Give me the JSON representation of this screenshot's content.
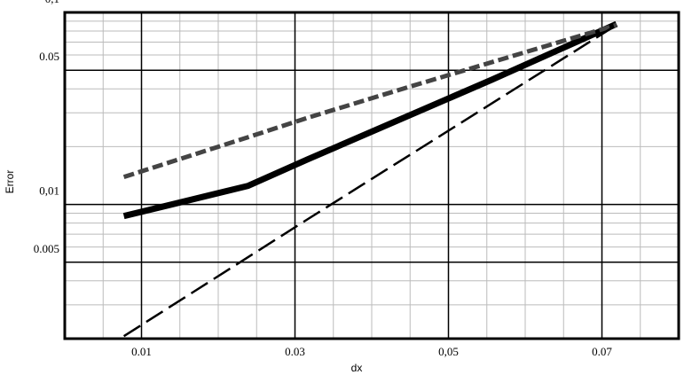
{
  "chart_data": {
    "type": "line",
    "x_label": "dx",
    "y_label": "Error",
    "xlim": [
      0,
      0.08
    ],
    "ylim": [
      0.002,
      0.1
    ],
    "y_scale": "log",
    "grid": true,
    "minor_grid": true,
    "xticks": [
      0.01,
      0.03,
      {
        "value": 0.05,
        "label": "0,05"
      },
      0.07
    ],
    "yticks": [
      {
        "value": 0.1,
        "label": "0,1"
      },
      0.05,
      {
        "value": 0.01,
        "label": "0,01"
      },
      0.005
    ],
    "series": [
      {
        "color": "#000000",
        "width": 7,
        "dash": "none",
        "x": [
          0.0077,
          0.0135,
          0.0239,
          0.0317,
          0.0557,
          0.0719
        ],
        "values": [
          0.0087,
          0.0099,
          0.0125,
          0.0172,
          0.0447,
          0.087
        ]
      },
      {
        "color": "#444444",
        "width": 5,
        "dash": "12 5",
        "x": [
          0.0077,
          0.0239,
          0.0317,
          0.0442,
          0.0719
        ],
        "values": [
          0.0139,
          0.0224,
          0.0283,
          0.0402,
          0.086
        ]
      },
      {
        "color": "#000000",
        "width": 2.5,
        "dash": "22 8",
        "x": [
          0.0077,
          0.0317,
          0.0719
        ],
        "values": [
          0.00206,
          0.0084,
          0.086
        ]
      }
    ]
  }
}
